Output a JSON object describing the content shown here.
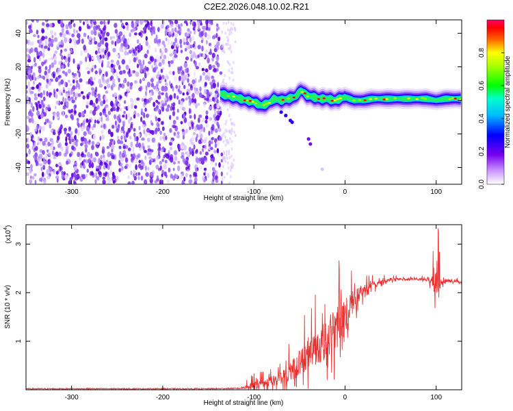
{
  "title": "C2E2.2026.048.10.02.R21",
  "chart_data": [
    {
      "type": "heatmap",
      "xlabel": "Height of straight line (km)",
      "ylabel": "Frequency (Hz)",
      "xlim": [
        -350,
        128
      ],
      "ylim": [
        -50,
        48
      ],
      "x_ticks": [
        -300,
        -200,
        -100,
        0,
        100
      ],
      "y_ticks": [
        -40,
        -20,
        0,
        20,
        40
      ],
      "colorbar": {
        "label": "Normalized spectral amplitude",
        "range": [
          0,
          1
        ],
        "ticks": [
          0.0,
          0.2,
          0.4,
          0.6,
          0.8
        ],
        "colormap": [
          "#ffffff",
          "#6600dd",
          "#0000ff",
          "#00ccff",
          "#00ff66",
          "#ffff00",
          "#ff0000",
          "#ff0066"
        ]
      },
      "noise_region": {
        "x_range": [
          -350,
          -135
        ],
        "freq_range": [
          -50,
          48
        ]
      },
      "signal_track": {
        "x": [
          -137,
          -130,
          -122,
          -115,
          -108,
          -100,
          -92,
          -85,
          -78,
          -70,
          -62,
          -55,
          -48,
          -42,
          -35,
          -28,
          -20,
          -12,
          -5,
          0,
          10,
          20,
          30,
          50,
          70,
          90,
          100,
          110,
          128
        ],
        "freq": [
          4,
          3,
          2,
          1,
          0,
          -1,
          -3,
          -2,
          1,
          0,
          1,
          2,
          6,
          3,
          2,
          1,
          1,
          0,
          1,
          2,
          0,
          0,
          1,
          1,
          1,
          1,
          0,
          1,
          1
        ]
      },
      "tail_points": {
        "x": [
          -70,
          -65,
          -60,
          -58,
          -40,
          -38,
          -25
        ],
        "freq": [
          -7,
          -9,
          -12,
          -13,
          -23,
          -26,
          -41
        ]
      },
      "grid": false
    },
    {
      "type": "line",
      "xlabel": "Height of straight line (km)",
      "ylabel": "SNR (10 * v/v)",
      "y_multiplier": "(x10",
      "y_multiplier_exp": "4",
      "y_multiplier_close": ")",
      "xlim": [
        -350,
        128
      ],
      "ylim": [
        0,
        3.4
      ],
      "x_ticks": [
        -300,
        -200,
        -100,
        0,
        100
      ],
      "y_ticks": [
        1,
        2,
        3
      ],
      "color": "#e83030",
      "grid": false,
      "series": [
        {
          "x": [
            -350,
            -300,
            -250,
            -200,
            -150,
            -115,
            -105,
            -100,
            -90,
            -80,
            -70,
            -60,
            -50,
            -40,
            -30,
            -20,
            -10,
            0,
            10,
            20,
            30,
            40,
            50,
            60,
            70,
            80,
            90,
            95,
            100,
            103,
            105,
            110,
            120,
            128
          ],
          "y": [
            0.02,
            0.02,
            0.02,
            0.02,
            0.02,
            0.03,
            0.06,
            0.1,
            0.14,
            0.18,
            0.25,
            0.38,
            0.55,
            0.72,
            0.9,
            1.05,
            1.25,
            1.55,
            1.85,
            2.05,
            2.15,
            2.22,
            2.27,
            2.28,
            2.28,
            2.28,
            2.27,
            2.25,
            2.2,
            2.35,
            2.25,
            2.25,
            2.23,
            2.22
          ]
        }
      ],
      "spike_amplitude": [
        0,
        0,
        0,
        0,
        0,
        0,
        0.18,
        0.2,
        0.24,
        0.3,
        0.45,
        0.6,
        0.75,
        0.9,
        1.0,
        1.15,
        1.3,
        0.9,
        0.6,
        0.35,
        0.22,
        0.12,
        0.08,
        0.06,
        0.05,
        0.05,
        0.1,
        0.4,
        0.8,
        0.9,
        0.4,
        0.1,
        0.08,
        0.06
      ]
    }
  ]
}
